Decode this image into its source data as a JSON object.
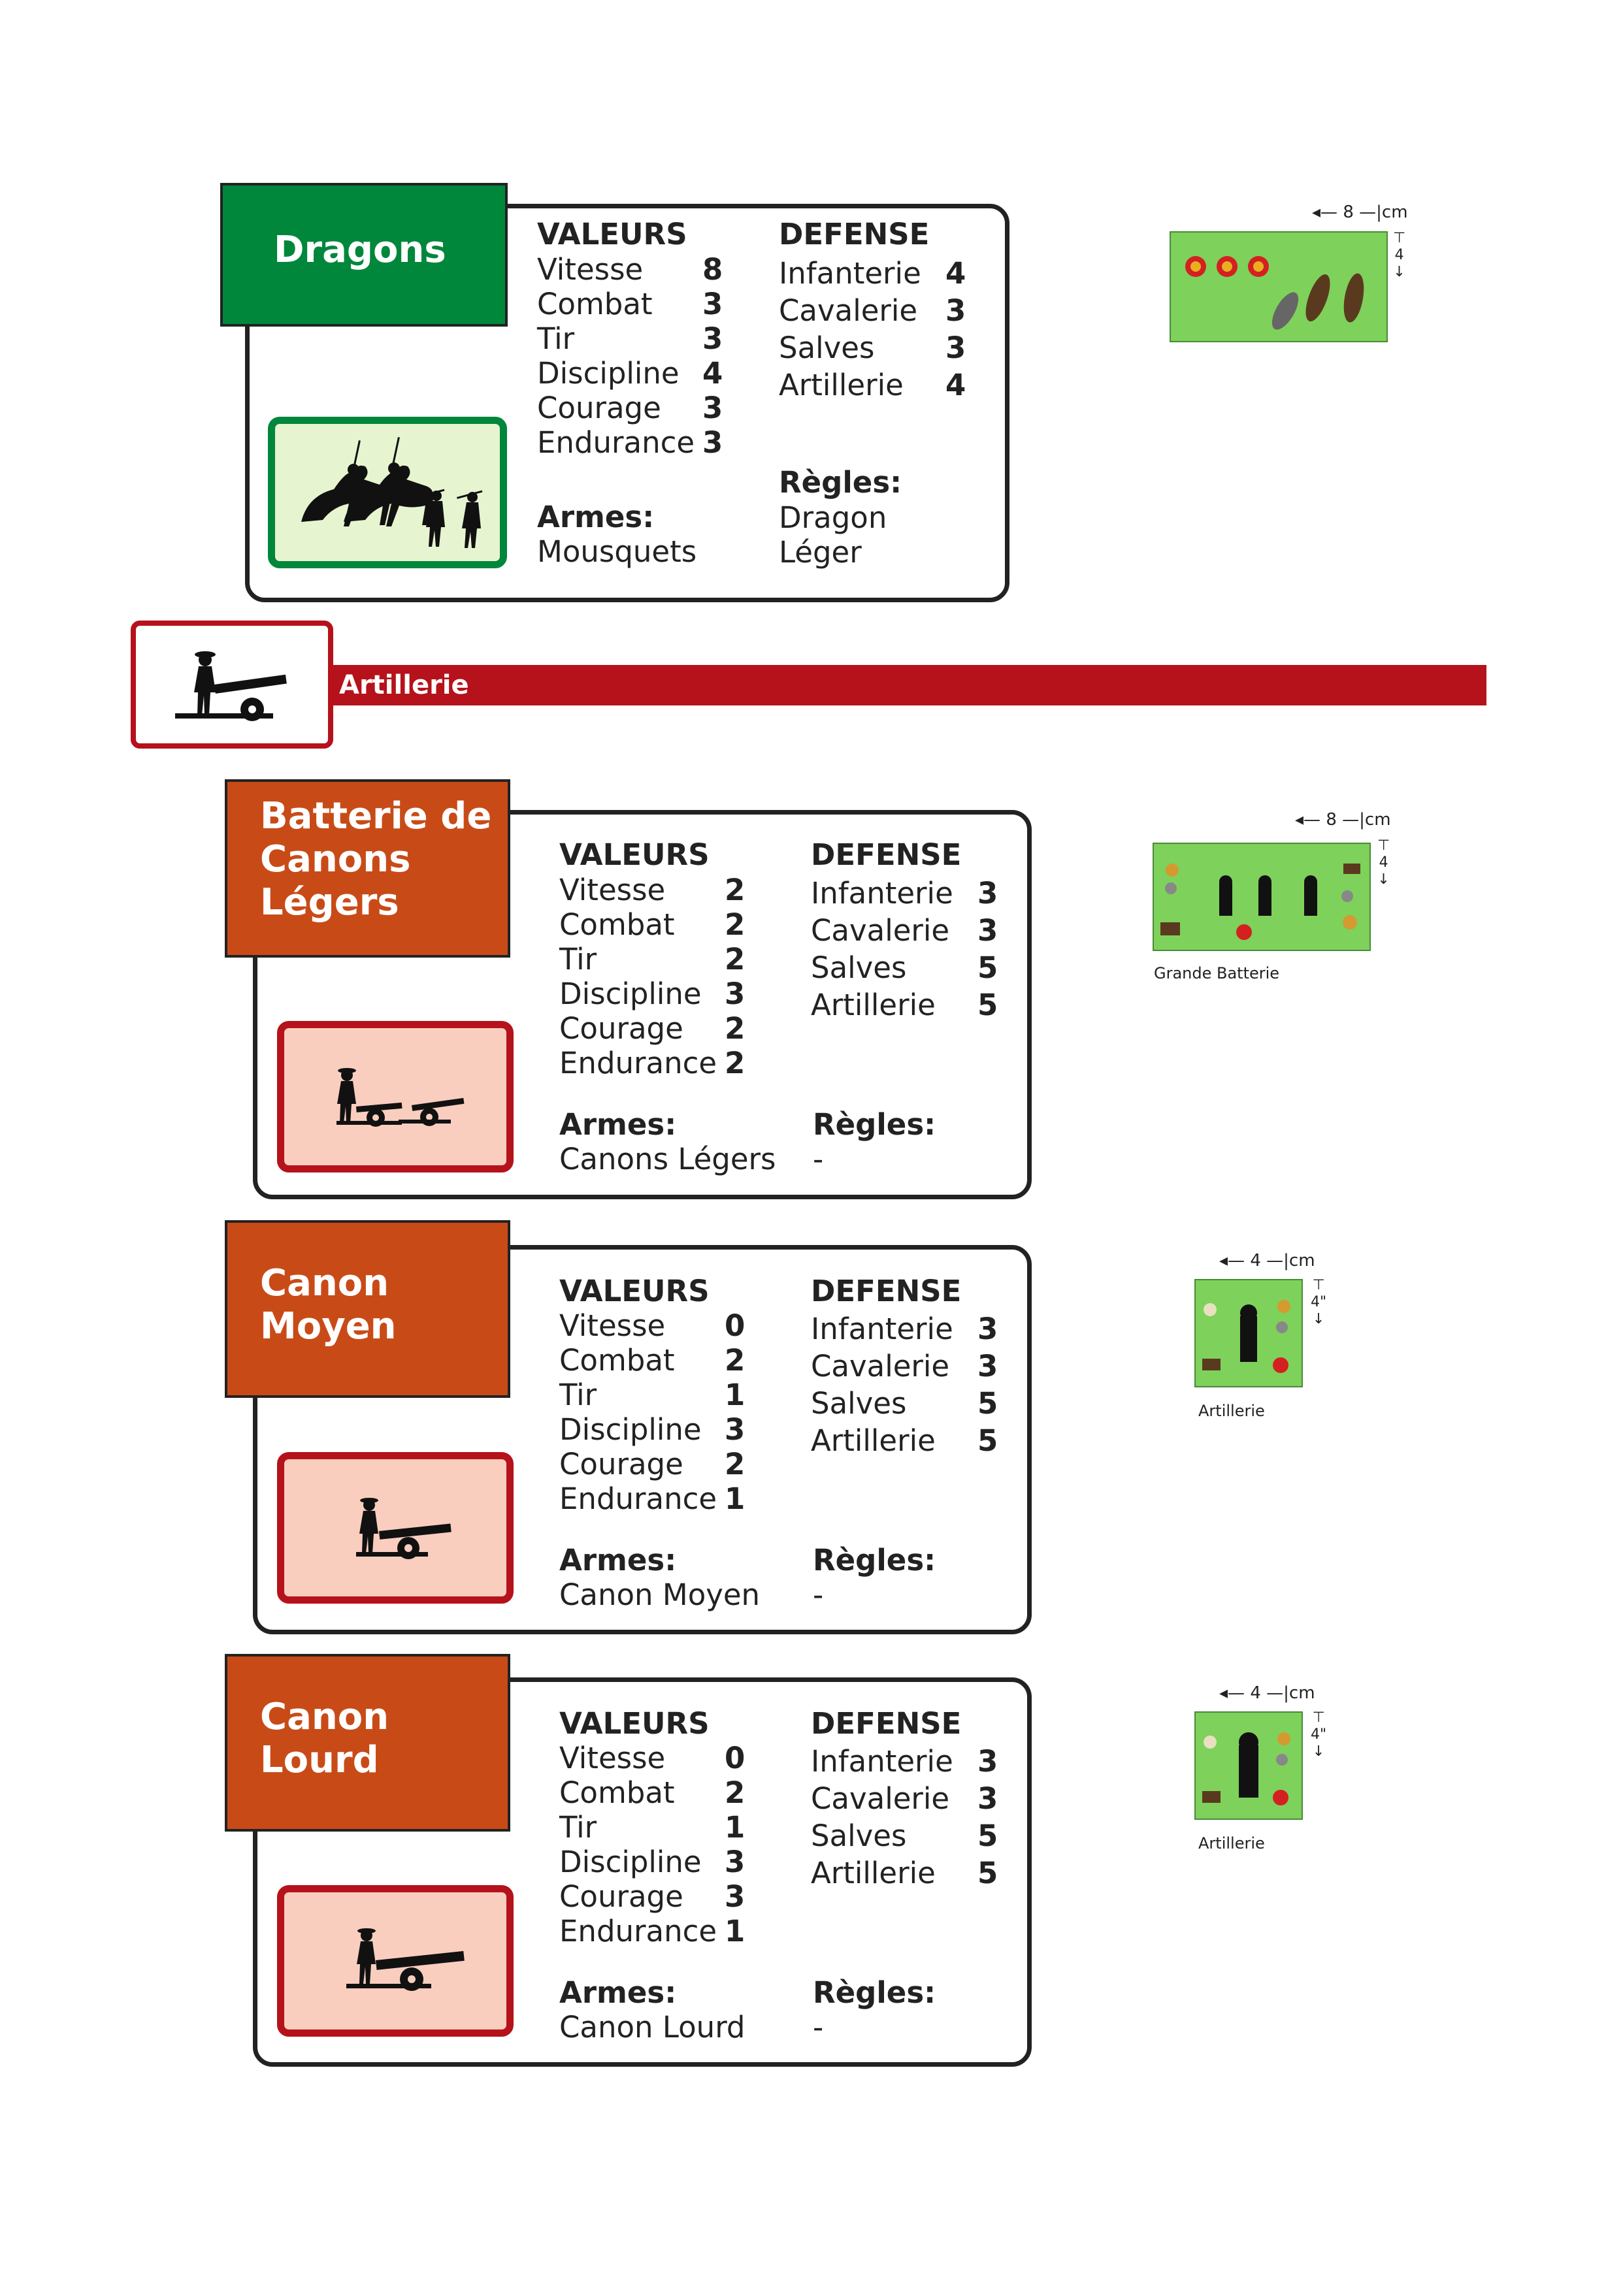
{
  "colors": {
    "green": "#00873c",
    "orange": "#c84b17",
    "red": "#b5121b",
    "pale_green": "#e6f5d0",
    "pale_red": "#f9cebf",
    "base_green": "#7ed15a"
  },
  "section": {
    "title": "Artillerie"
  },
  "cards": [
    {
      "name": "Dragons",
      "valeurs_head": "VALEURS",
      "defense_head": "DEFENSE",
      "stats": [
        {
          "label": "Vitesse",
          "value": "8"
        },
        {
          "label": "Combat",
          "value": "3"
        },
        {
          "label": "Tir",
          "value": "3"
        },
        {
          "label": "Discipline",
          "value": "4"
        },
        {
          "label": "Courage",
          "value": "3"
        },
        {
          "label": "Endurance",
          "value": "3"
        }
      ],
      "defense": [
        {
          "label": "Infanterie",
          "value": "4"
        },
        {
          "label": "Cavalerie",
          "value": "3"
        },
        {
          "label": "Salves",
          "value": "3"
        },
        {
          "label": "Artillerie",
          "value": "4"
        }
      ],
      "armes_head": "Armes:",
      "armes": "Mousquets",
      "regles_head": "Règles:",
      "regles": [
        "Dragon",
        "Léger"
      ],
      "icon": "dragoons-silhouette-icon"
    },
    {
      "name_lines": [
        "Batterie de",
        "Canons",
        "Légers"
      ],
      "valeurs_head": "VALEURS",
      "defense_head": "DEFENSE",
      "stats": [
        {
          "label": "Vitesse",
          "value": "2"
        },
        {
          "label": "Combat",
          "value": "2"
        },
        {
          "label": "Tir",
          "value": "2"
        },
        {
          "label": "Discipline",
          "value": "3"
        },
        {
          "label": "Courage",
          "value": "2"
        },
        {
          "label": "Endurance",
          "value": "2"
        }
      ],
      "defense": [
        {
          "label": "Infanterie",
          "value": "3"
        },
        {
          "label": "Cavalerie",
          "value": "3"
        },
        {
          "label": "Salves",
          "value": "5"
        },
        {
          "label": "Artillerie",
          "value": "5"
        }
      ],
      "armes_head": "Armes:",
      "armes": "Canons Légers",
      "regles_head": "Règles:",
      "regles": [
        "-"
      ],
      "icon": "light-cannons-silhouette-icon"
    },
    {
      "name_lines": [
        "Canon",
        "Moyen"
      ],
      "valeurs_head": "VALEURS",
      "defense_head": "DEFENSE",
      "stats": [
        {
          "label": "Vitesse",
          "value": "0"
        },
        {
          "label": "Combat",
          "value": "2"
        },
        {
          "label": "Tir",
          "value": "1"
        },
        {
          "label": "Discipline",
          "value": "3"
        },
        {
          "label": "Courage",
          "value": "2"
        },
        {
          "label": "Endurance",
          "value": "1"
        }
      ],
      "defense": [
        {
          "label": "Infanterie",
          "value": "3"
        },
        {
          "label": "Cavalerie",
          "value": "3"
        },
        {
          "label": "Salves",
          "value": "5"
        },
        {
          "label": "Artillerie",
          "value": "5"
        }
      ],
      "armes_head": "Armes:",
      "armes": "Canon Moyen",
      "regles_head": "Règles:",
      "regles": [
        "-"
      ],
      "icon": "medium-cannon-silhouette-icon"
    },
    {
      "name_lines": [
        "Canon",
        "Lourd"
      ],
      "valeurs_head": "VALEURS",
      "defense_head": "DEFENSE",
      "stats": [
        {
          "label": "Vitesse",
          "value": "0"
        },
        {
          "label": "Combat",
          "value": "2"
        },
        {
          "label": "Tir",
          "value": "1"
        },
        {
          "label": "Discipline",
          "value": "3"
        },
        {
          "label": "Courage",
          "value": "3"
        },
        {
          "label": "Endurance",
          "value": "1"
        }
      ],
      "defense": [
        {
          "label": "Infanterie",
          "value": "3"
        },
        {
          "label": "Cavalerie",
          "value": "3"
        },
        {
          "label": "Salves",
          "value": "5"
        },
        {
          "label": "Artillerie",
          "value": "5"
        }
      ],
      "armes_head": "Armes:",
      "armes": "Canon Lourd",
      "regles_head": "Règles:",
      "regles": [
        "-"
      ],
      "icon": "heavy-cannon-silhouette-icon"
    }
  ],
  "bases": [
    {
      "width": "8",
      "unit": "cm",
      "depth": "4",
      "caption": ""
    },
    {
      "width": "8",
      "unit": "cm",
      "depth": "4",
      "caption": "Grande Batterie"
    },
    {
      "width": "4",
      "unit": "cm",
      "depth": "4\"",
      "caption": "Artillerie"
    },
    {
      "width": "4",
      "unit": "cm",
      "depth": "4\"",
      "caption": "Artillerie"
    }
  ]
}
